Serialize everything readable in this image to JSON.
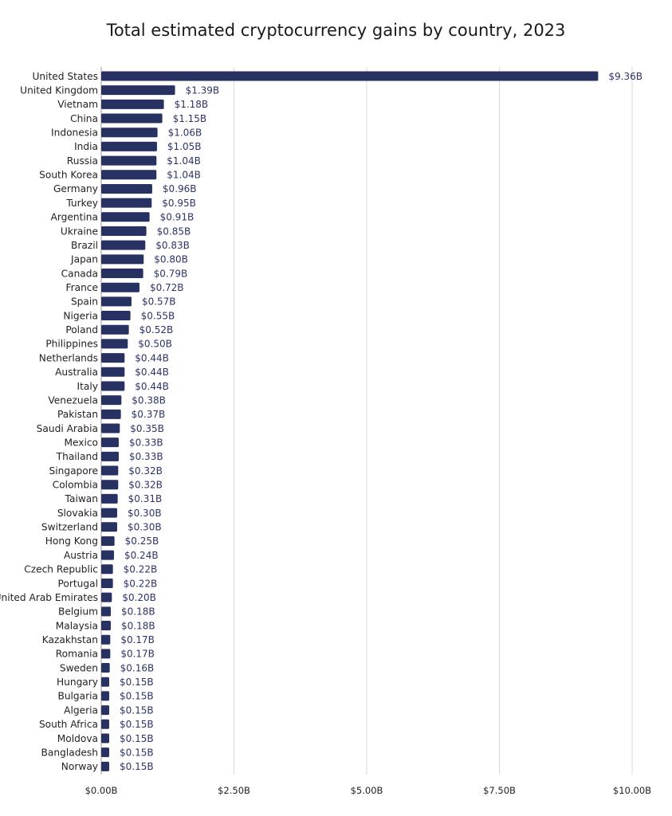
{
  "chart_data": {
    "type": "bar",
    "orientation": "horizontal",
    "title": "Total estimated cryptocurrency gains by country, 2023",
    "xlabel": "",
    "ylabel": "",
    "xlim": [
      0,
      10
    ],
    "x_ticks": [
      0,
      2.5,
      5,
      7.5,
      10
    ],
    "x_tick_labels": [
      "$0.00B",
      "$2.50B",
      "$5.00B",
      "$7.50B",
      "$10.00B"
    ],
    "grid": "vertical",
    "bar_color": "#283262",
    "categories": [
      "United States",
      "United Kingdom",
      "Vietnam",
      "China",
      "Indonesia",
      "India",
      "Russia",
      "South Korea",
      "Germany",
      "Turkey",
      "Argentina",
      "Ukraine",
      "Brazil",
      "Japan",
      "Canada",
      "France",
      "Spain",
      "Nigeria",
      "Poland",
      "Philippines",
      "Netherlands",
      "Australia",
      "Italy",
      "Venezuela",
      "Pakistan",
      "Saudi Arabia",
      "Mexico",
      "Thailand",
      "Singapore",
      "Colombia",
      "Taiwan",
      "Slovakia",
      "Switzerland",
      "Hong Kong",
      "Austria",
      "Czech Republic",
      "Portugal",
      "United Arab Emirates",
      "Belgium",
      "Malaysia",
      "Kazakhstan",
      "Romania",
      "Sweden",
      "Hungary",
      "Bulgaria",
      "Algeria",
      "South Africa",
      "Moldova",
      "Bangladesh",
      "Norway"
    ],
    "values": [
      9.36,
      1.39,
      1.18,
      1.15,
      1.06,
      1.05,
      1.04,
      1.04,
      0.96,
      0.95,
      0.91,
      0.85,
      0.83,
      0.8,
      0.79,
      0.72,
      0.57,
      0.55,
      0.52,
      0.5,
      0.44,
      0.44,
      0.44,
      0.38,
      0.37,
      0.35,
      0.33,
      0.33,
      0.32,
      0.32,
      0.31,
      0.3,
      0.3,
      0.25,
      0.24,
      0.22,
      0.22,
      0.2,
      0.18,
      0.18,
      0.17,
      0.17,
      0.16,
      0.15,
      0.15,
      0.15,
      0.15,
      0.15,
      0.15,
      0.15
    ],
    "value_labels": [
      "$9.36B",
      "$1.39B",
      "$1.18B",
      "$1.15B",
      "$1.06B",
      "$1.05B",
      "$1.04B",
      "$1.04B",
      "$0.96B",
      "$0.95B",
      "$0.91B",
      "$0.85B",
      "$0.83B",
      "$0.80B",
      "$0.79B",
      "$0.72B",
      "$0.57B",
      "$0.55B",
      "$0.52B",
      "$0.50B",
      "$0.44B",
      "$0.44B",
      "$0.44B",
      "$0.38B",
      "$0.37B",
      "$0.35B",
      "$0.33B",
      "$0.33B",
      "$0.32B",
      "$0.32B",
      "$0.31B",
      "$0.30B",
      "$0.30B",
      "$0.25B",
      "$0.24B",
      "$0.22B",
      "$0.22B",
      "$0.20B",
      "$0.18B",
      "$0.18B",
      "$0.17B",
      "$0.17B",
      "$0.16B",
      "$0.15B",
      "$0.15B",
      "$0.15B",
      "$0.15B",
      "$0.15B",
      "$0.15B",
      "$0.15B"
    ]
  }
}
